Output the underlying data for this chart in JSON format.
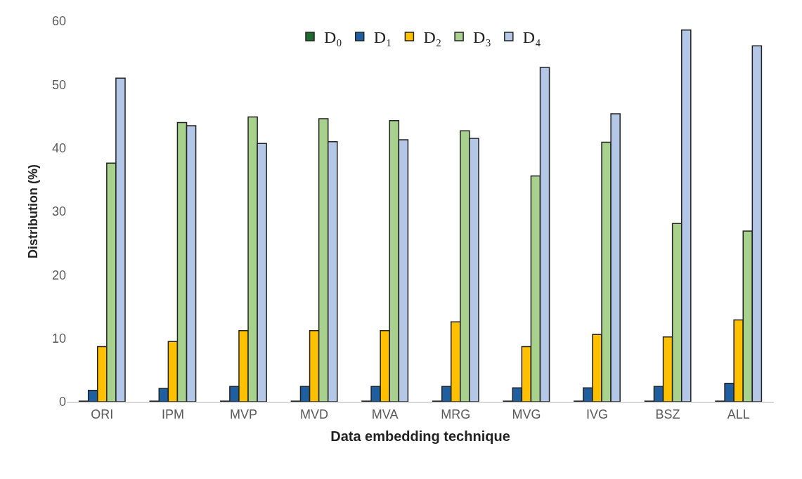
{
  "chart_data": {
    "type": "bar",
    "xlabel": "Data embedding technique",
    "ylabel": "Distribution (%)",
    "categories": [
      "ORI",
      "IPM",
      "MVP",
      "MVD",
      "MVA",
      "MRG",
      "MVG",
      "IVG",
      "BSZ",
      "ALL"
    ],
    "series": [
      {
        "name": "D₀",
        "color": "#1e6b2e",
        "values": [
          0.1,
          0.1,
          0.1,
          0.1,
          0.1,
          0.1,
          0.1,
          0.1,
          0.1,
          0.1
        ]
      },
      {
        "name": "D₁",
        "color": "#1f5fa0",
        "values": [
          1.8,
          2.1,
          2.4,
          2.4,
          2.4,
          2.4,
          2.2,
          2.2,
          2.4,
          2.9
        ]
      },
      {
        "name": "D₂",
        "color": "#ffc000",
        "values": [
          8.7,
          9.5,
          11.2,
          11.2,
          11.2,
          12.6,
          8.7,
          10.6,
          10.2,
          12.9
        ]
      },
      {
        "name": "D₃",
        "color": "#a9d18e",
        "values": [
          37.6,
          44.0,
          44.9,
          44.6,
          44.3,
          42.7,
          35.6,
          40.9,
          28.1,
          26.9
        ]
      },
      {
        "name": "D₄",
        "color": "#b4c7e7",
        "values": [
          51.0,
          43.5,
          40.7,
          41.0,
          41.3,
          41.5,
          52.7,
          45.4,
          58.6,
          56.1
        ]
      }
    ],
    "ylim": [
      0,
      60
    ],
    "yticks": [
      0,
      10,
      20,
      30,
      40,
      50,
      60
    ],
    "legend": "top"
  }
}
